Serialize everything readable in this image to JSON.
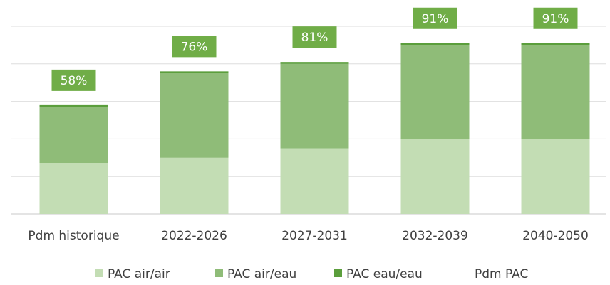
{
  "chart_data": {
    "type": "bar",
    "stacked": true,
    "categories": [
      "Pdm historique",
      "2022-2026",
      "2027-2031",
      "2032-2039",
      "2040-2050"
    ],
    "series": [
      {
        "name": "PAC air/air",
        "color": "#c3ddb4",
        "values": [
          27,
          30,
          35,
          40,
          40
        ]
      },
      {
        "name": "PAC air/eau",
        "color": "#8fbc78",
        "values": [
          30,
          45,
          45,
          50,
          50
        ]
      },
      {
        "name": "PAC eau/eau",
        "color": "#5b9e3c",
        "values": [
          1,
          1,
          1,
          1,
          1
        ]
      },
      {
        "name": "Pdm PAC",
        "type": "line",
        "color": "#70ad47",
        "values": [
          58,
          76,
          81,
          91,
          91
        ],
        "value_labels": [
          "58%",
          "76%",
          "81%",
          "91%",
          "91%"
        ]
      }
    ],
    "ylim": [
      0,
      100
    ],
    "yticks": [
      0,
      20,
      40,
      60,
      80,
      100
    ],
    "grid": true,
    "legend": "bottom"
  }
}
